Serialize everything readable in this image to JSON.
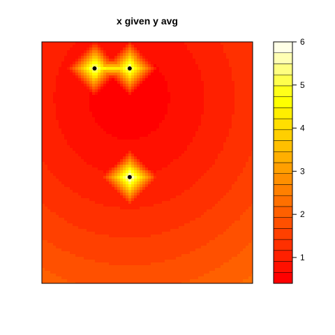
{
  "chart_data": {
    "type": "heatmap",
    "title": "x given y avg",
    "xlabel": "",
    "ylabel": "",
    "points": [
      {
        "x": 0.45,
        "y": 0.89
      },
      {
        "x": 0.55,
        "y": 0.89
      },
      {
        "x": 0.55,
        "y": 0.44
      }
    ],
    "colorbar": {
      "range": [
        0.4,
        6
      ],
      "ticks": [
        1,
        2,
        3,
        4,
        5,
        6
      ],
      "levels": 22,
      "low_color": "#ff0000",
      "high_color": "#ffffff",
      "palette": "heat"
    }
  }
}
